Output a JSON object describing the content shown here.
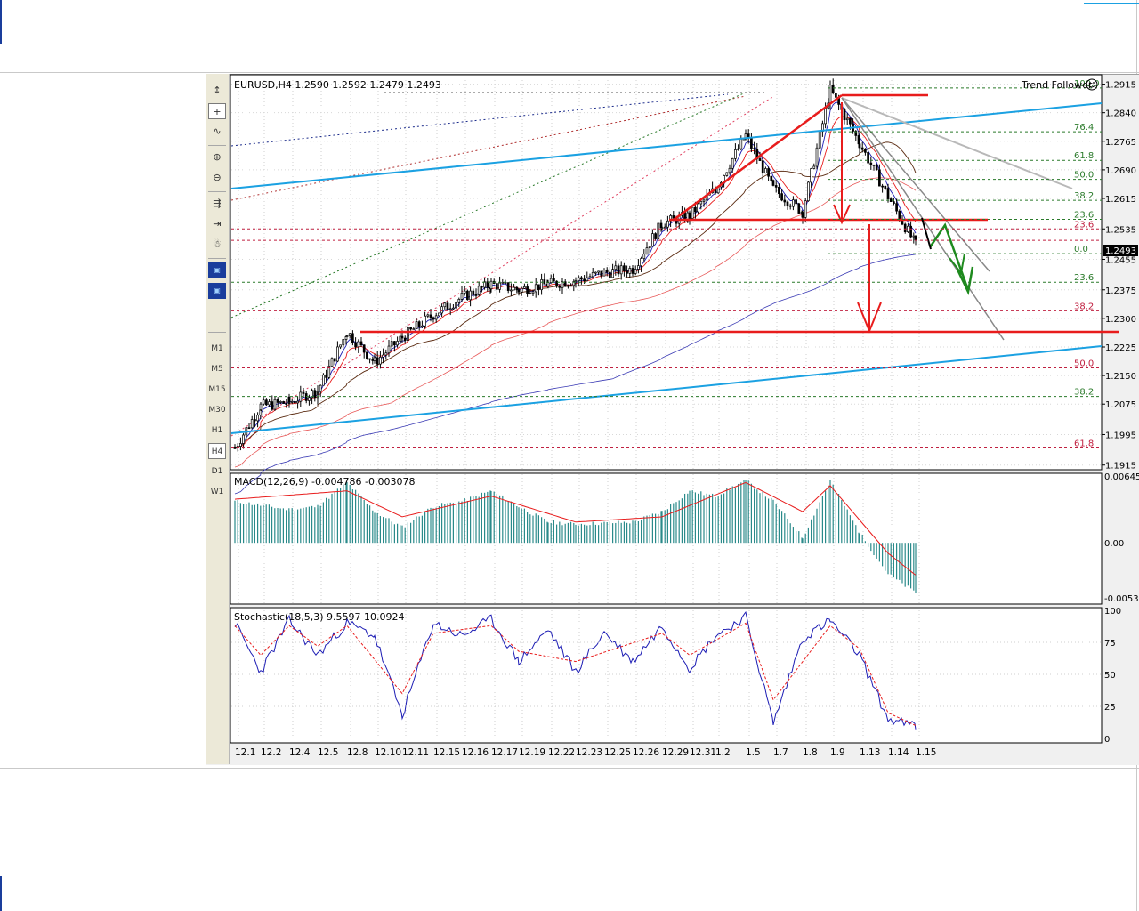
{
  "window": {
    "symbol_header": "EURUSD,H4  1.2590 1.2592 1.2479 1.2493",
    "indicator_name": "Trend Follower",
    "current_price_label": "1.2493"
  },
  "toolbar": {
    "timeframes": [
      "M1",
      "M5",
      "M15",
      "M30",
      "H1",
      "H4",
      "D1",
      "W1"
    ],
    "selected_timeframe": "H4",
    "tools": [
      "cursor-icon",
      "crosshair-icon",
      "line-chart-icon",
      "zoom-in-icon",
      "zoom-out-icon",
      "autoscroll-icon",
      "chart-shift-icon",
      "expert-icon",
      "candle-template-icon",
      "period-template-icon"
    ]
  },
  "colors": {
    "frame_bg": "#f0f0f0",
    "panel_bg": "#ffffff",
    "bull_candle": "#ffffff",
    "bear_candle": "#000000",
    "trendline_cyan": "#1ba1e2",
    "signal_red": "#e81c1c",
    "arrow_green": "#1e8a1e",
    "macd_hist": "#2a8a8a",
    "stoch_main": "#1c1cb4",
    "stoch_signal": "#e81c1c"
  },
  "chart_data": [
    {
      "type": "line",
      "title": "EURUSD,H4  1.2590 1.2592 1.2479 1.2493",
      "price_axis_ticks": [
        "1.2915",
        "1.2840",
        "1.2765",
        "1.2690",
        "1.2615",
        "1.2535",
        "1.2455",
        "1.2375",
        "1.2300",
        "1.2225",
        "1.2150",
        "1.2075",
        "1.1995",
        "1.1915"
      ],
      "ylim": [
        1.1905,
        1.2935
      ],
      "x_labels": [
        "12.1",
        "12.2",
        "12.4",
        "12.5",
        "12.8",
        "12.10",
        "12.11",
        "12.15",
        "12.16",
        "12.17",
        "12.19",
        "12.22",
        "12.23",
        "12.25",
        "12.26",
        "12.29",
        "12.31",
        "1.2",
        "1.5",
        "1.7",
        "1.8",
        "1.9",
        "1.13",
        "1.14",
        "1.15"
      ],
      "current_price": "1.2493",
      "fibonacci_levels_upper": [
        "100.0",
        "76.4",
        "61.8",
        "50.0",
        "38.2",
        "23.6",
        "0.0"
      ],
      "fibonacci_levels_lower": [
        "23.6",
        "23.6",
        "38.2",
        "50.0",
        "38.2",
        "61.8"
      ],
      "close_path_keypoints": [
        {
          "x": "12.1",
          "y": 1.196
        },
        {
          "x": "12.2",
          "y": 1.207
        },
        {
          "x": "12.4",
          "y": 1.208
        },
        {
          "x": "12.5",
          "y": 1.211
        },
        {
          "x": "12.8",
          "y": 1.2265
        },
        {
          "x": "12.10",
          "y": 1.2185
        },
        {
          "x": "12.11",
          "y": 1.225
        },
        {
          "x": "12.15",
          "y": 1.231
        },
        {
          "x": "12.16",
          "y": 1.2355
        },
        {
          "x": "12.17",
          "y": 1.239
        },
        {
          "x": "12.19",
          "y": 1.2375
        },
        {
          "x": "12.22",
          "y": 1.239
        },
        {
          "x": "12.23",
          "y": 1.24
        },
        {
          "x": "12.25",
          "y": 1.242
        },
        {
          "x": "12.26",
          "y": 1.243
        },
        {
          "x": "12.29",
          "y": 1.255
        },
        {
          "x": "12.31",
          "y": 1.257
        },
        {
          "x": "1.2",
          "y": 1.264
        },
        {
          "x": "1.5",
          "y": 1.278
        },
        {
          "x": "1.7",
          "y": 1.264
        },
        {
          "x": "1.8",
          "y": 1.258
        },
        {
          "x": "1.9",
          "y": 1.29
        },
        {
          "x": "1.13",
          "y": 1.276
        },
        {
          "x": "1.14",
          "y": 1.262
        },
        {
          "x": "1.15",
          "y": 1.2493
        }
      ]
    },
    {
      "type": "bar",
      "title": "MACD(12,26,9)  -0.004786  -0.003078",
      "axis_ticks": [
        "0.00645",
        "0.00",
        "-0.0053"
      ],
      "ylim": [
        -0.0058,
        0.0066
      ],
      "histogram_keypoints": [
        {
          "x": "12.1",
          "y": 0.004
        },
        {
          "x": "12.4",
          "y": 0.0032
        },
        {
          "x": "12.5",
          "y": 0.0035
        },
        {
          "x": "12.8",
          "y": 0.0058
        },
        {
          "x": "12.10",
          "y": 0.003
        },
        {
          "x": "12.11",
          "y": 0.0015
        },
        {
          "x": "12.15",
          "y": 0.0035
        },
        {
          "x": "12.16",
          "y": 0.004
        },
        {
          "x": "12.17",
          "y": 0.005
        },
        {
          "x": "12.19",
          "y": 0.0035
        },
        {
          "x": "12.22",
          "y": 0.002
        },
        {
          "x": "12.23",
          "y": 0.0018
        },
        {
          "x": "12.26",
          "y": 0.002
        },
        {
          "x": "12.29",
          "y": 0.003
        },
        {
          "x": "12.31",
          "y": 0.005
        },
        {
          "x": "1.2",
          "y": 0.0045
        },
        {
          "x": "1.5",
          "y": 0.006
        },
        {
          "x": "1.7",
          "y": 0.004
        },
        {
          "x": "1.8",
          "y": 0.0005
        },
        {
          "x": "1.9",
          "y": 0.006
        },
        {
          "x": "1.13",
          "y": 0.001
        },
        {
          "x": "1.14",
          "y": -0.003
        },
        {
          "x": "1.15",
          "y": -0.0048
        }
      ],
      "signal_keypoints": [
        {
          "x": "12.1",
          "y": 0.0042
        },
        {
          "x": "12.8",
          "y": 0.005
        },
        {
          "x": "12.11",
          "y": 0.0025
        },
        {
          "x": "12.17",
          "y": 0.0045
        },
        {
          "x": "12.23",
          "y": 0.002
        },
        {
          "x": "12.29",
          "y": 0.0025
        },
        {
          "x": "1.5",
          "y": 0.0058
        },
        {
          "x": "1.8",
          "y": 0.003
        },
        {
          "x": "1.9",
          "y": 0.0055
        },
        {
          "x": "1.14",
          "y": -0.001
        },
        {
          "x": "1.15",
          "y": -0.0031
        }
      ]
    },
    {
      "type": "line",
      "title": "Stochastic(18,5,3)  9.5597  10.0924",
      "axis_ticks": [
        "100",
        "75",
        "50",
        "25",
        "0"
      ],
      "ylim": [
        0,
        100
      ],
      "series": [
        {
          "values": [
            {
              "x": "12.1",
              "y": 90
            },
            {
              "x": "12.2",
              "y": 52
            },
            {
              "x": "12.4",
              "y": 92
            },
            {
              "x": "12.5",
              "y": 65
            },
            {
              "x": "12.8",
              "y": 90
            },
            {
              "x": "12.10",
              "y": 80
            },
            {
              "x": "12.11",
              "y": 18
            },
            {
              "x": "12.15",
              "y": 90
            },
            {
              "x": "12.16",
              "y": 80
            },
            {
              "x": "12.17",
              "y": 93
            },
            {
              "x": "12.19",
              "y": 60
            },
            {
              "x": "12.22",
              "y": 85
            },
            {
              "x": "12.23",
              "y": 52
            },
            {
              "x": "12.25",
              "y": 83
            },
            {
              "x": "12.26",
              "y": 60
            },
            {
              "x": "12.29",
              "y": 88
            },
            {
              "x": "12.31",
              "y": 55
            },
            {
              "x": "1.2",
              "y": 80
            },
            {
              "x": "1.5",
              "y": 95
            },
            {
              "x": "1.7",
              "y": 12
            },
            {
              "x": "1.8",
              "y": 78
            },
            {
              "x": "1.9",
              "y": 92
            },
            {
              "x": "1.13",
              "y": 65
            },
            {
              "x": "1.14",
              "y": 15
            },
            {
              "x": "1.15",
              "y": 9.56
            }
          ]
        },
        {
          "values": [
            {
              "x": "12.1",
              "y": 88
            },
            {
              "x": "12.2",
              "y": 65
            },
            {
              "x": "12.4",
              "y": 88
            },
            {
              "x": "12.5",
              "y": 72
            },
            {
              "x": "12.8",
              "y": 88
            },
            {
              "x": "12.11",
              "y": 35
            },
            {
              "x": "12.15",
              "y": 82
            },
            {
              "x": "12.17",
              "y": 88
            },
            {
              "x": "12.19",
              "y": 68
            },
            {
              "x": "12.23",
              "y": 60
            },
            {
              "x": "12.29",
              "y": 82
            },
            {
              "x": "12.31",
              "y": 65
            },
            {
              "x": "1.5",
              "y": 90
            },
            {
              "x": "1.7",
              "y": 30
            },
            {
              "x": "1.9",
              "y": 88
            },
            {
              "x": "1.13",
              "y": 70
            },
            {
              "x": "1.14",
              "y": 20
            },
            {
              "x": "1.15",
              "y": 10.09
            }
          ]
        }
      ]
    }
  ]
}
